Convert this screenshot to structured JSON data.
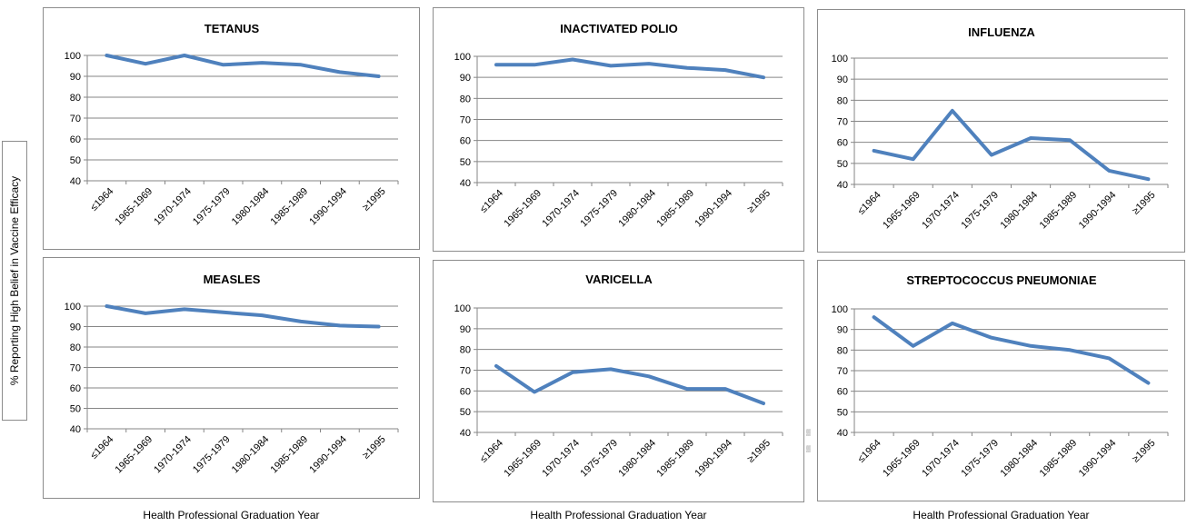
{
  "y_axis_label": "% Reporting High Belief in Vaccine Efficacy",
  "x_axis_label": "Health Professional Graduation Year",
  "colors": {
    "line": "#4f81bd",
    "grid": "#868686",
    "border": "#8c8c8c"
  },
  "stray_glyphs": [
    "▒",
    "▒"
  ],
  "chart_data": [
    {
      "type": "line",
      "title": "TETANUS",
      "categories": [
        "≤1964",
        "1965-1969",
        "1970-1974",
        "1975-1979",
        "1980-1984",
        "1985-1989",
        "1990-1994",
        "≥1995"
      ],
      "values": [
        100,
        96,
        100,
        95.5,
        96.5,
        95.5,
        92,
        90
      ],
      "ylim": [
        40,
        100
      ],
      "yticks": [
        40,
        50,
        60,
        70,
        80,
        90,
        100
      ],
      "grid": true
    },
    {
      "type": "line",
      "title": "INACTIVATED POLIO",
      "categories": [
        "≤1964",
        "1965-1969",
        "1970-1974",
        "1975-1979",
        "1980-1984",
        "1985-1989",
        "1990-1994",
        "≥1995"
      ],
      "values": [
        96,
        96,
        98.5,
        95.5,
        96.5,
        94.5,
        93.5,
        90
      ],
      "ylim": [
        40,
        100
      ],
      "yticks": [
        40,
        50,
        60,
        70,
        80,
        90,
        100
      ],
      "grid": true
    },
    {
      "type": "line",
      "title": "INFLUENZA",
      "categories": [
        "≤1964",
        "1965-1969",
        "1970-1974",
        "1975-1979",
        "1980-1984",
        "1985-1989",
        "1990-1994",
        "≥1995"
      ],
      "values": [
        56,
        52,
        75,
        54,
        62,
        61,
        46.5,
        42.5
      ],
      "ylim": [
        40,
        100
      ],
      "yticks": [
        40,
        50,
        60,
        70,
        80,
        90,
        100
      ],
      "grid": true
    },
    {
      "type": "line",
      "title": "MEASLES",
      "categories": [
        "≤1964",
        "1965-1969",
        "1970-1974",
        "1975-1979",
        "1980-1984",
        "1985-1989",
        "1990-1994",
        "≥1995"
      ],
      "values": [
        100,
        96.5,
        98.5,
        97,
        95.5,
        92.5,
        90.5,
        90
      ],
      "ylim": [
        40,
        100
      ],
      "yticks": [
        40,
        50,
        60,
        70,
        80,
        90,
        100
      ],
      "grid": true
    },
    {
      "type": "line",
      "title": "VARICELLA",
      "categories": [
        "≤1964",
        "1965-1969",
        "1970-1974",
        "1975-1979",
        "1980-1984",
        "1985-1989",
        "1990-1994",
        "≥1995"
      ],
      "values": [
        72,
        59.5,
        69,
        70.5,
        67,
        61,
        61,
        54
      ],
      "ylim": [
        40,
        100
      ],
      "yticks": [
        40,
        50,
        60,
        70,
        80,
        90,
        100
      ],
      "grid": true
    },
    {
      "type": "line",
      "title": "STREPTOCOCCUS PNEUMONIAE",
      "categories": [
        "≤1964",
        "1965-1969",
        "1970-1974",
        "1975-1979",
        "1980-1984",
        "1985-1989",
        "1990-1994",
        "≥1995"
      ],
      "values": [
        96,
        82,
        93,
        86,
        82,
        80,
        76,
        64
      ],
      "ylim": [
        40,
        100
      ],
      "yticks": [
        40,
        50,
        60,
        70,
        80,
        90,
        100
      ],
      "grid": true
    }
  ]
}
